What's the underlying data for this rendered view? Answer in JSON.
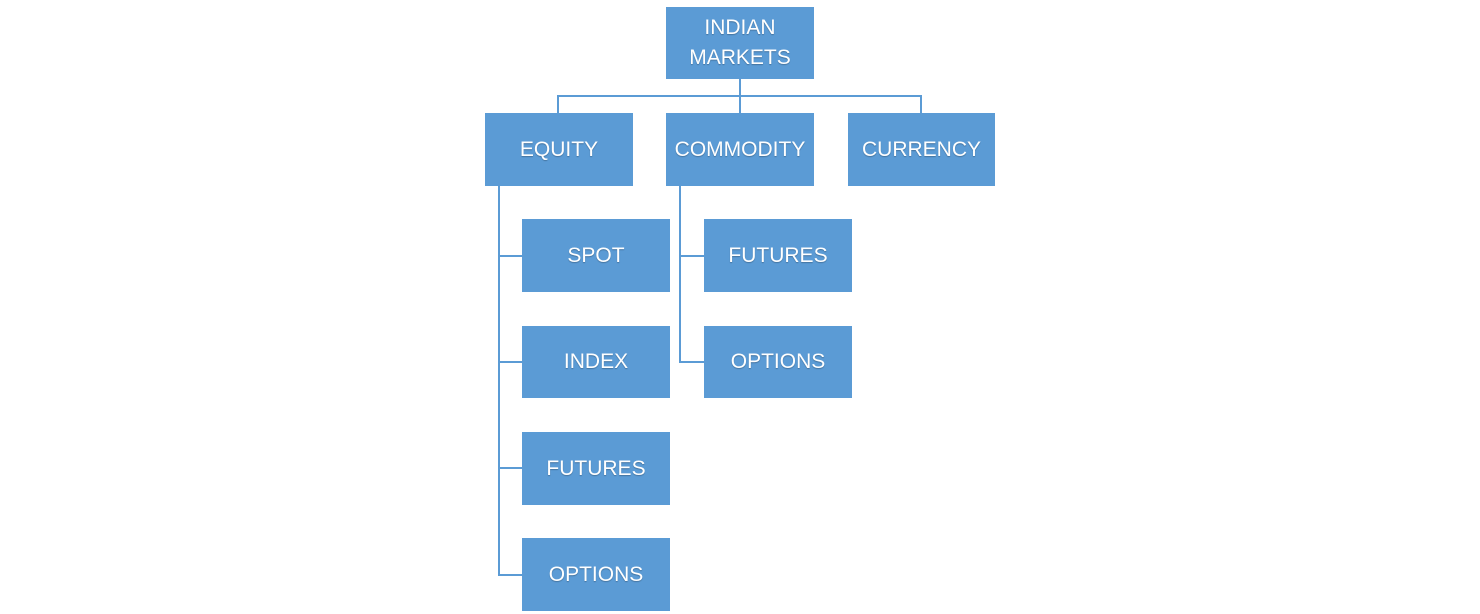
{
  "diagram": {
    "root": {
      "label": "INDIAN\nMARKETS"
    },
    "categories": [
      {
        "label": "EQUITY",
        "children": [
          "SPOT",
          "INDEX",
          "FUTURES",
          "OPTIONS"
        ]
      },
      {
        "label": "COMMODITY",
        "children": [
          "FUTURES",
          "OPTIONS"
        ]
      },
      {
        "label": "CURRENCY",
        "children": []
      }
    ]
  },
  "colors": {
    "box": "#5b9bd5",
    "line": "#5b9bd5",
    "text": "#ffffff"
  }
}
